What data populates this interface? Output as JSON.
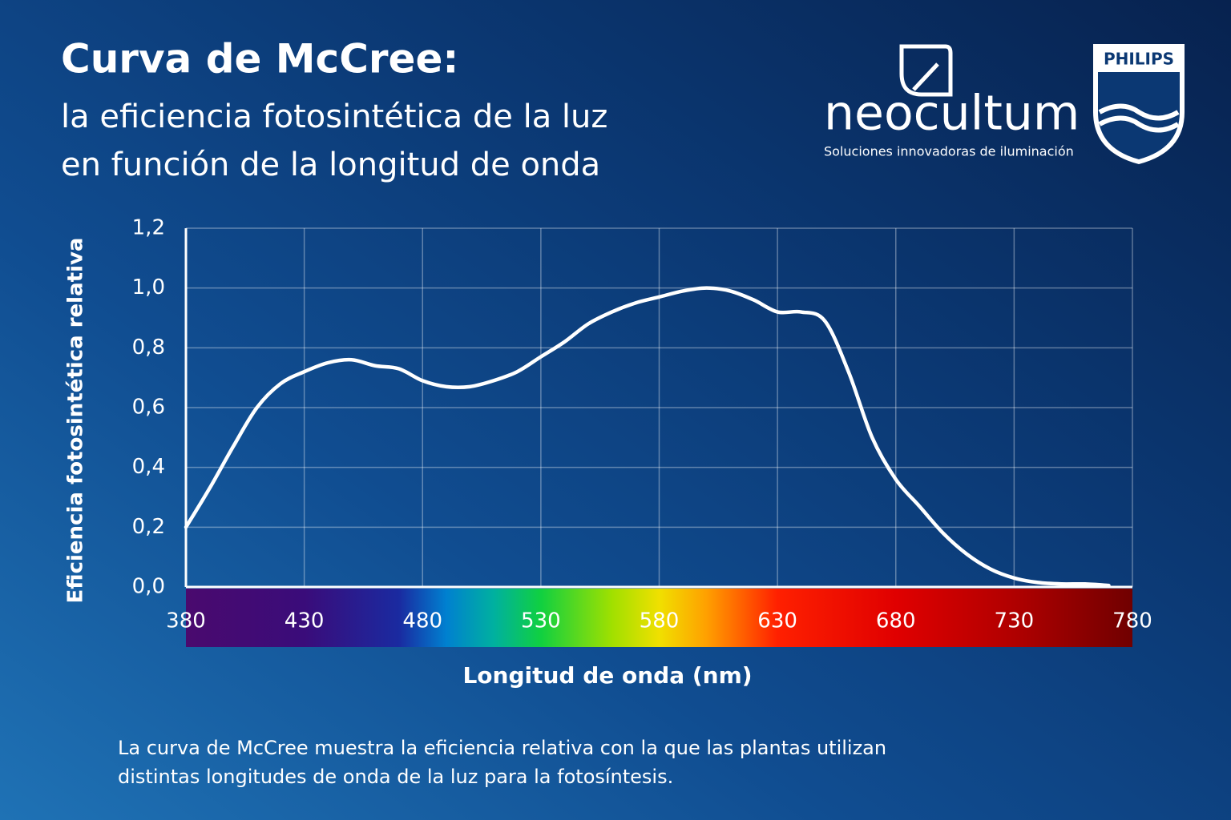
{
  "chart_data": {
    "type": "line",
    "title": "Curva de McCree:",
    "subtitle": [
      "la eficiencia fotosintética de la luz",
      "en función de la longitud de onda"
    ],
    "x_label": "Longitud de onda (nm)",
    "y_label": "Eficiencia fotosintética relativa",
    "description": [
      "La curva de McCree muestra la eficiencia relativa con la que las plantas utilizan",
      "distintas longitudes de onda de la luz para la fotosíntesis."
    ],
    "x": [
      380,
      390,
      400,
      410,
      420,
      430,
      440,
      450,
      460,
      470,
      480,
      490,
      500,
      510,
      520,
      530,
      540,
      550,
      560,
      570,
      580,
      590,
      600,
      610,
      620,
      630,
      640,
      650,
      660,
      670,
      680,
      690,
      700,
      710,
      720,
      730,
      740,
      750,
      760,
      770
    ],
    "series": [
      {
        "color": "#ffffff",
        "values": [
          0.2,
          0.33,
          0.47,
          0.6,
          0.68,
          0.72,
          0.75,
          0.76,
          0.74,
          0.73,
          0.69,
          0.67,
          0.67,
          0.69,
          0.72,
          0.77,
          0.82,
          0.88,
          0.92,
          0.95,
          0.97,
          0.99,
          1.0,
          0.99,
          0.96,
          0.92,
          0.92,
          0.89,
          0.72,
          0.5,
          0.36,
          0.27,
          0.18,
          0.11,
          0.06,
          0.03,
          0.015,
          0.01,
          0.01,
          0.005
        ]
      }
    ],
    "xlim": [
      380,
      780
    ],
    "xticks": [
      380,
      430,
      480,
      530,
      580,
      630,
      680,
      730,
      780
    ],
    "ylim": [
      0,
      1.2
    ],
    "yticks": [
      {
        "value": 0,
        "label": "0,0"
      },
      {
        "value": 0.2,
        "label": "0,2"
      },
      {
        "value": 0.4,
        "label": "0,4"
      },
      {
        "value": 0.6,
        "label": "0,6"
      },
      {
        "value": 0.8,
        "label": "0,8"
      },
      {
        "value": 1.0,
        "label": "1,0"
      },
      {
        "value": 1.2,
        "label": "1,2"
      }
    ],
    "grid": true
  },
  "logos": {
    "brand": "neocultum",
    "tagline": "Soluciones innovadoras de iluminación",
    "partner": "PHILIPS"
  }
}
